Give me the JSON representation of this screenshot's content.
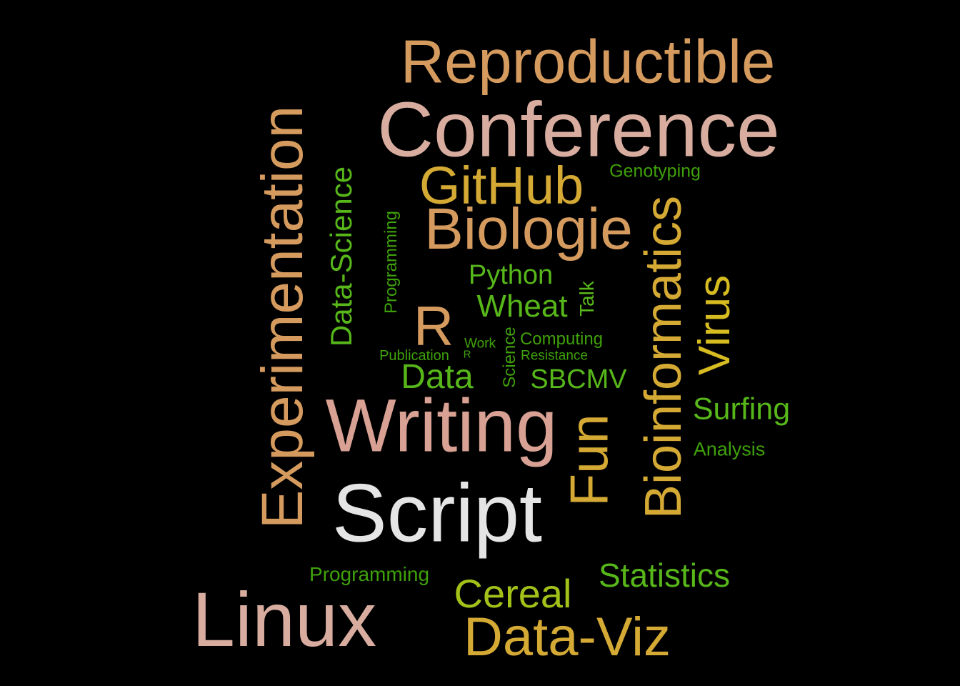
{
  "palette": {
    "background": "#000000",
    "tan": "#D59B5E",
    "rose": "#D8ADA0",
    "salmon": "#D8A193",
    "gold": "#D4A934",
    "yellow": "#D7BC21",
    "light_gray": "#E5E5E5",
    "green": "#57B71A",
    "dark_green": "#3FA10A",
    "lime": "#A2C219"
  },
  "words": [
    {
      "text": "Reproductible",
      "color": "#D59B5E"
    },
    {
      "text": "Conference",
      "color": "#D8ADA0"
    },
    {
      "text": "GitHub",
      "color": "#D4A934"
    },
    {
      "text": "Genotyping",
      "color": "#3FA10A"
    },
    {
      "text": "Biologie",
      "color": "#D59B5E"
    },
    {
      "text": "Experimentation",
      "color": "#D59B5E"
    },
    {
      "text": "Data-Science",
      "color": "#57B71A"
    },
    {
      "text": "Programming",
      "color": "#3FA10A"
    },
    {
      "text": "Bioinformatics",
      "color": "#D4A934"
    },
    {
      "text": "Python",
      "color": "#57B71A"
    },
    {
      "text": "Wheat",
      "color": "#57B71A"
    },
    {
      "text": "Talk",
      "color": "#57B71A"
    },
    {
      "text": "Virus",
      "color": "#D7BC21"
    },
    {
      "text": "R",
      "color": "#D59B5E"
    },
    {
      "text": "Work",
      "color": "#3FA10A"
    },
    {
      "text": "Computing",
      "color": "#3FA10A"
    },
    {
      "text": "Publication",
      "color": "#3FA10A"
    },
    {
      "text": "R",
      "color": "#3FA10A"
    },
    {
      "text": "Resistance",
      "color": "#3FA10A"
    },
    {
      "text": "Science",
      "color": "#3FA10A"
    },
    {
      "text": "Data",
      "color": "#57B71A"
    },
    {
      "text": "SBCMV",
      "color": "#57B71A"
    },
    {
      "text": "Surfing",
      "color": "#57B71A"
    },
    {
      "text": "Writing",
      "color": "#D8A193"
    },
    {
      "text": "Fun",
      "color": "#D4A934"
    },
    {
      "text": "Analysis",
      "color": "#3FA10A"
    },
    {
      "text": "Script",
      "color": "#E5E5E5"
    },
    {
      "text": "Programming",
      "color": "#3FA10A"
    },
    {
      "text": "Statistics",
      "color": "#57B71A"
    },
    {
      "text": "Cereal",
      "color": "#A2C219"
    },
    {
      "text": "Linux",
      "color": "#D8ADA0"
    },
    {
      "text": "Data-Viz",
      "color": "#D4A934"
    }
  ]
}
